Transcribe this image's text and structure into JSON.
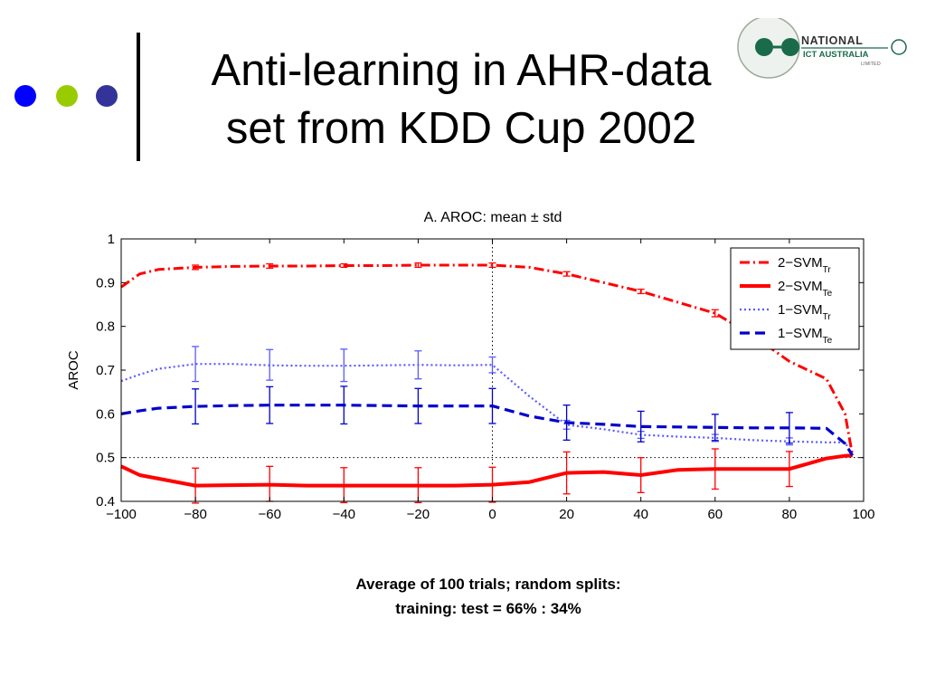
{
  "slide": {
    "title_line1": "Anti-learning in AHR-data",
    "title_line2": "set from KDD Cup 2002",
    "caption_line1": "Average of 100 trials; random splits:",
    "caption_line2": "training: test =  66% :  34%",
    "logo_line1": "NATIONAL",
    "logo_line2": "ICT AUSTRALIA",
    "logo_line3": "LIMITED",
    "bullet_colors": [
      "#0000ff",
      "#99cc00",
      "#333399"
    ]
  },
  "chart_data": {
    "type": "line",
    "title": "A. AROC:  mean ± std",
    "ylabel": "AROC",
    "xlabel": "",
    "xlim": [
      -100,
      100
    ],
    "ylim": [
      0.4,
      1.0
    ],
    "xticks": [
      -100,
      -80,
      -60,
      -40,
      -20,
      0,
      20,
      40,
      60,
      80,
      100
    ],
    "yticks": [
      0.4,
      0.5,
      0.6,
      0.7,
      0.8,
      0.9,
      1.0
    ],
    "xtick_labels": [
      "−100",
      "−80",
      "−60",
      "−40",
      "−20",
      "0",
      "20",
      "40",
      "60",
      "80",
      "100"
    ],
    "ytick_labels": [
      "0.4",
      "0.5",
      "0.6",
      "0.7",
      "0.8",
      "0.9",
      "1"
    ],
    "grid": false,
    "reference_lines": {
      "x": 0,
      "y": 0.5
    },
    "legend_position": "top-right",
    "series": [
      {
        "name": "2−SVM",
        "subscript": "Tr",
        "color": "#ff0000",
        "style": "dashdot",
        "x": [
          -100,
          -95,
          -90,
          -80,
          -70,
          -60,
          -50,
          -40,
          -30,
          -20,
          -10,
          0,
          10,
          20,
          30,
          40,
          50,
          60,
          70,
          80,
          90,
          95,
          97
        ],
        "y": [
          0.89,
          0.92,
          0.93,
          0.935,
          0.937,
          0.938,
          0.938,
          0.939,
          0.939,
          0.94,
          0.94,
          0.94,
          0.935,
          0.92,
          0.9,
          0.88,
          0.855,
          0.83,
          0.78,
          0.72,
          0.68,
          0.6,
          0.505
        ],
        "errorbars": [
          {
            "x": -80,
            "y": 0.935,
            "err": 0.005
          },
          {
            "x": -60,
            "y": 0.938,
            "err": 0.005
          },
          {
            "x": -40,
            "y": 0.939,
            "err": 0.004
          },
          {
            "x": -20,
            "y": 0.94,
            "err": 0.005
          },
          {
            "x": 0,
            "y": 0.94,
            "err": 0.005
          },
          {
            "x": 20,
            "y": 0.92,
            "err": 0.005
          },
          {
            "x": 40,
            "y": 0.88,
            "err": 0.005
          },
          {
            "x": 60,
            "y": 0.83,
            "err": 0.008
          }
        ]
      },
      {
        "name": "2−SVM",
        "subscript": "Te",
        "color": "#ff0000",
        "style": "solid",
        "x": [
          -100,
          -95,
          -90,
          -80,
          -70,
          -60,
          -50,
          -40,
          -30,
          -20,
          -10,
          0,
          10,
          20,
          30,
          40,
          50,
          60,
          70,
          80,
          90,
          95,
          97
        ],
        "y": [
          0.48,
          0.46,
          0.452,
          0.436,
          0.437,
          0.438,
          0.436,
          0.436,
          0.436,
          0.436,
          0.436,
          0.438,
          0.444,
          0.465,
          0.467,
          0.46,
          0.472,
          0.474,
          0.474,
          0.474,
          0.498,
          0.504,
          0.505
        ],
        "errorbars": [
          {
            "x": -80,
            "y": 0.436,
            "err": 0.04
          },
          {
            "x": -60,
            "y": 0.44,
            "err": 0.04
          },
          {
            "x": -40,
            "y": 0.437,
            "err": 0.04
          },
          {
            "x": -20,
            "y": 0.437,
            "err": 0.04
          },
          {
            "x": 0,
            "y": 0.438,
            "err": 0.04
          },
          {
            "x": 20,
            "y": 0.465,
            "err": 0.048
          },
          {
            "x": 40,
            "y": 0.46,
            "err": 0.04
          },
          {
            "x": 60,
            "y": 0.474,
            "err": 0.046
          },
          {
            "x": 80,
            "y": 0.474,
            "err": 0.04
          }
        ]
      },
      {
        "name": "1−SVM",
        "subscript": "Tr",
        "color": "#5a5aff",
        "style": "dotted",
        "x": [
          -100,
          -95,
          -90,
          -80,
          -70,
          -60,
          -50,
          -40,
          -30,
          -20,
          -10,
          0,
          10,
          20,
          30,
          40,
          50,
          60,
          70,
          80,
          90,
          95,
          97
        ],
        "y": [
          0.675,
          0.69,
          0.703,
          0.714,
          0.714,
          0.711,
          0.71,
          0.71,
          0.711,
          0.712,
          0.711,
          0.712,
          0.64,
          0.575,
          0.565,
          0.552,
          0.548,
          0.545,
          0.54,
          0.537,
          0.535,
          0.535,
          0.505
        ],
        "errorbars": [
          {
            "x": -80,
            "y": 0.714,
            "err": 0.04
          },
          {
            "x": -60,
            "y": 0.712,
            "err": 0.035
          },
          {
            "x": -40,
            "y": 0.711,
            "err": 0.037
          },
          {
            "x": -20,
            "y": 0.712,
            "err": 0.032
          },
          {
            "x": 0,
            "y": 0.712,
            "err": 0.018
          },
          {
            "x": 20,
            "y": 0.575,
            "err": 0.01
          },
          {
            "x": 40,
            "y": 0.552,
            "err": 0.008
          },
          {
            "x": 60,
            "y": 0.545,
            "err": 0.008
          },
          {
            "x": 80,
            "y": 0.537,
            "err": 0.008
          }
        ]
      },
      {
        "name": "1−SVM",
        "subscript": "Te",
        "color": "#0000cc",
        "style": "dashed",
        "x": [
          -100,
          -95,
          -90,
          -80,
          -70,
          -60,
          -50,
          -40,
          -30,
          -20,
          -10,
          0,
          10,
          20,
          30,
          40,
          50,
          60,
          70,
          80,
          90,
          95,
          97
        ],
        "y": [
          0.6,
          0.607,
          0.613,
          0.617,
          0.619,
          0.62,
          0.62,
          0.62,
          0.619,
          0.618,
          0.618,
          0.618,
          0.595,
          0.58,
          0.576,
          0.571,
          0.57,
          0.569,
          0.568,
          0.568,
          0.567,
          0.532,
          0.505
        ],
        "errorbars": [
          {
            "x": -80,
            "y": 0.617,
            "err": 0.04
          },
          {
            "x": -60,
            "y": 0.62,
            "err": 0.042
          },
          {
            "x": -40,
            "y": 0.62,
            "err": 0.043
          },
          {
            "x": -20,
            "y": 0.618,
            "err": 0.04
          },
          {
            "x": 0,
            "y": 0.618,
            "err": 0.04
          },
          {
            "x": 20,
            "y": 0.58,
            "err": 0.04
          },
          {
            "x": 40,
            "y": 0.571,
            "err": 0.035
          },
          {
            "x": 60,
            "y": 0.569,
            "err": 0.03
          },
          {
            "x": 80,
            "y": 0.568,
            "err": 0.035
          }
        ]
      }
    ]
  }
}
